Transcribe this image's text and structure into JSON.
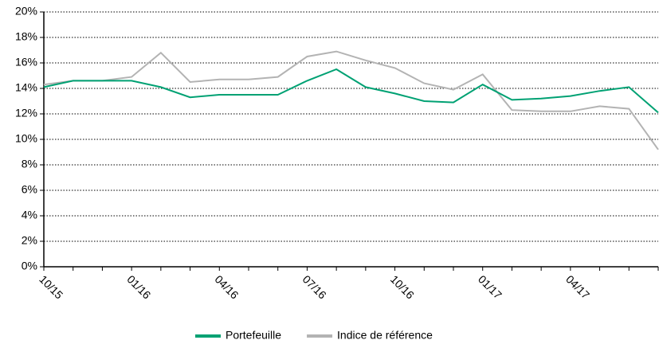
{
  "chart_data": {
    "type": "line",
    "categories": [
      "10/15",
      null,
      null,
      "01/16",
      null,
      null,
      "04/16",
      null,
      null,
      "07/16",
      null,
      null,
      "10/16",
      null,
      null,
      "01/17",
      null,
      null,
      "04/17",
      null,
      null,
      null
    ],
    "series": [
      {
        "name": "Portefeuille",
        "color": "#00a173",
        "values": [
          14.1,
          14.6,
          14.6,
          14.6,
          14.1,
          13.3,
          13.5,
          13.5,
          13.5,
          14.6,
          15.5,
          14.1,
          13.6,
          13.0,
          12.9,
          14.3,
          13.1,
          13.2,
          13.4,
          13.8,
          14.1,
          12.1
        ]
      },
      {
        "name": "Indice de référence",
        "color": "#b3b3b3",
        "values": [
          14.3,
          14.6,
          14.6,
          14.9,
          16.8,
          14.5,
          14.7,
          14.7,
          14.9,
          16.5,
          16.9,
          16.2,
          15.6,
          14.4,
          13.9,
          15.1,
          12.3,
          12.2,
          12.2,
          12.6,
          12.4,
          9.2
        ]
      }
    ],
    "ylim": [
      0,
      20
    ],
    "yticks": [
      {
        "value": 0,
        "label": "0%"
      },
      {
        "value": 2,
        "label": "2%"
      },
      {
        "value": 4,
        "label": "4%"
      },
      {
        "value": 6,
        "label": "6%"
      },
      {
        "value": 8,
        "label": "8%"
      },
      {
        "value": 10,
        "label": "10%"
      },
      {
        "value": 12,
        "label": "12%"
      },
      {
        "value": 14,
        "label": "14%"
      },
      {
        "value": 16,
        "label": "16%"
      },
      {
        "value": 18,
        "label": "18%"
      },
      {
        "value": 20,
        "label": "20%"
      }
    ],
    "grid": true,
    "legend": "bottom"
  }
}
